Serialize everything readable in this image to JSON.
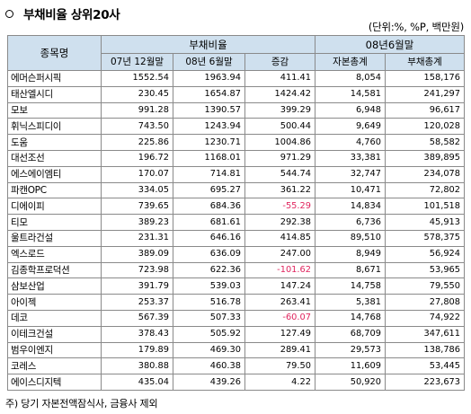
{
  "title": "부채비율 상위20사",
  "unit_note": "(단위:%, %P, 백만원)",
  "header": {
    "company": "종목명",
    "debt_ratio_group": "부채비율",
    "jun08_group": "08년6월말",
    "sub": [
      "07년 12월말",
      "08년 6월말",
      "증감",
      "자본총계",
      "부채총계"
    ]
  },
  "rows": [
    {
      "name": "에머슨퍼시픽",
      "dec07": "1552.54",
      "jun08": "1963.94",
      "change": "411.41",
      "equity": "8,054",
      "debt": "158,176"
    },
    {
      "name": "태산엘시디",
      "dec07": "230.45",
      "jun08": "1654.87",
      "change": "1424.42",
      "equity": "14,581",
      "debt": "241,297"
    },
    {
      "name": "모보",
      "dec07": "991.28",
      "jun08": "1390.57",
      "change": "399.29",
      "equity": "6,948",
      "debt": "96,617"
    },
    {
      "name": "휘닉스피디이",
      "dec07": "743.50",
      "jun08": "1243.94",
      "change": "500.44",
      "equity": "9,649",
      "debt": "120,028"
    },
    {
      "name": "도움",
      "dec07": "225.86",
      "jun08": "1230.71",
      "change": "1004.86",
      "equity": "4,760",
      "debt": "58,582"
    },
    {
      "name": "대선조선",
      "dec07": "196.72",
      "jun08": "1168.01",
      "change": "971.29",
      "equity": "33,381",
      "debt": "389,895"
    },
    {
      "name": "에스에이엠티",
      "dec07": "170.07",
      "jun08": "714.81",
      "change": "544.74",
      "equity": "32,747",
      "debt": "234,078"
    },
    {
      "name": "파캔OPC",
      "dec07": "334.05",
      "jun08": "695.27",
      "change": "361.22",
      "equity": "10,471",
      "debt": "72,802"
    },
    {
      "name": "디에이피",
      "dec07": "739.65",
      "jun08": "684.36",
      "change": "-55.29",
      "equity": "14,834",
      "debt": "101,518"
    },
    {
      "name": "티모",
      "dec07": "389.23",
      "jun08": "681.61",
      "change": "292.38",
      "equity": "6,736",
      "debt": "45,913"
    },
    {
      "name": "울트라건설",
      "dec07": "231.31",
      "jun08": "646.16",
      "change": "414.85",
      "equity": "89,510",
      "debt": "578,375"
    },
    {
      "name": "엑스로드",
      "dec07": "389.09",
      "jun08": "636.09",
      "change": "247.00",
      "equity": "8,949",
      "debt": "56,924"
    },
    {
      "name": "김종학프로덕션",
      "dec07": "723.98",
      "jun08": "622.36",
      "change": "-101.62",
      "equity": "8,671",
      "debt": "53,965"
    },
    {
      "name": "삼보산업",
      "dec07": "391.79",
      "jun08": "539.03",
      "change": "147.24",
      "equity": "14,758",
      "debt": "79,550"
    },
    {
      "name": "아이젝",
      "dec07": "253.37",
      "jun08": "516.78",
      "change": "263.41",
      "equity": "5,381",
      "debt": "27,808"
    },
    {
      "name": "데코",
      "dec07": "567.39",
      "jun08": "507.33",
      "change": "-60.07",
      "equity": "14,768",
      "debt": "74,922"
    },
    {
      "name": "이테크건설",
      "dec07": "378.43",
      "jun08": "505.92",
      "change": "127.49",
      "equity": "68,709",
      "debt": "347,611"
    },
    {
      "name": "범우이엔지",
      "dec07": "179.89",
      "jun08": "469.30",
      "change": "289.41",
      "equity": "29,573",
      "debt": "138,786"
    },
    {
      "name": "코레스",
      "dec07": "380.88",
      "jun08": "460.38",
      "change": "79.50",
      "equity": "11,609",
      "debt": "53,445"
    },
    {
      "name": "에이스디지텍",
      "dec07": "435.04",
      "jun08": "439.26",
      "change": "4.22",
      "equity": "50,920",
      "debt": "223,673"
    }
  ],
  "footnote": "주) 당기 자본전액잠식사, 금융사 제외",
  "colors": {
    "header_bg": "#cfe0ee",
    "negative": "#e0245e",
    "border": "#8a8a8a"
  }
}
